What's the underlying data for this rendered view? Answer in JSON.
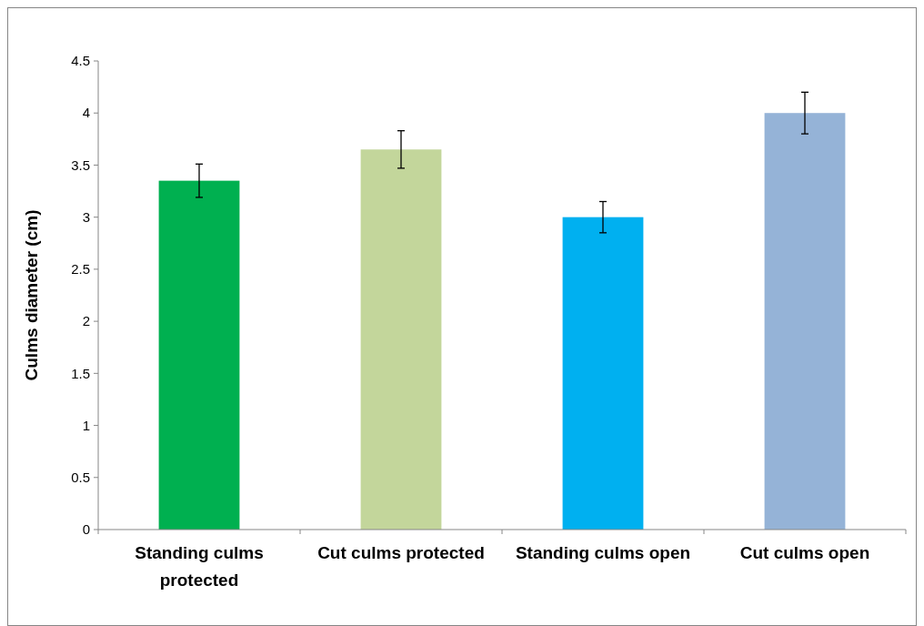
{
  "chart_data": {
    "type": "bar",
    "ylabel": "Culms diameter (cm)",
    "categories": [
      "Standing culms protected",
      "Cut culms protected",
      "Standing culms open",
      "Cut culms open"
    ],
    "values": [
      3.35,
      3.65,
      3.0,
      4.0
    ],
    "colors": [
      "#00b050",
      "#c3d69b",
      "#00b0f0",
      "#95b3d7"
    ],
    "errors": [
      0.16,
      0.18,
      0.15,
      0.2
    ],
    "ylim": [
      0,
      4.5
    ],
    "yticks": [
      0,
      {
        "value": 0.5,
        "label": "0.5"
      },
      1,
      {
        "value": 1.5,
        "label": "1.5"
      },
      2,
      {
        "value": 2.5,
        "label": "2.5"
      },
      3,
      {
        "value": 3.5,
        "label": "3.5"
      },
      4,
      {
        "value": 4.5,
        "label": "4.5"
      }
    ],
    "tick_labels": [
      "x",
      "y"
    ]
  }
}
